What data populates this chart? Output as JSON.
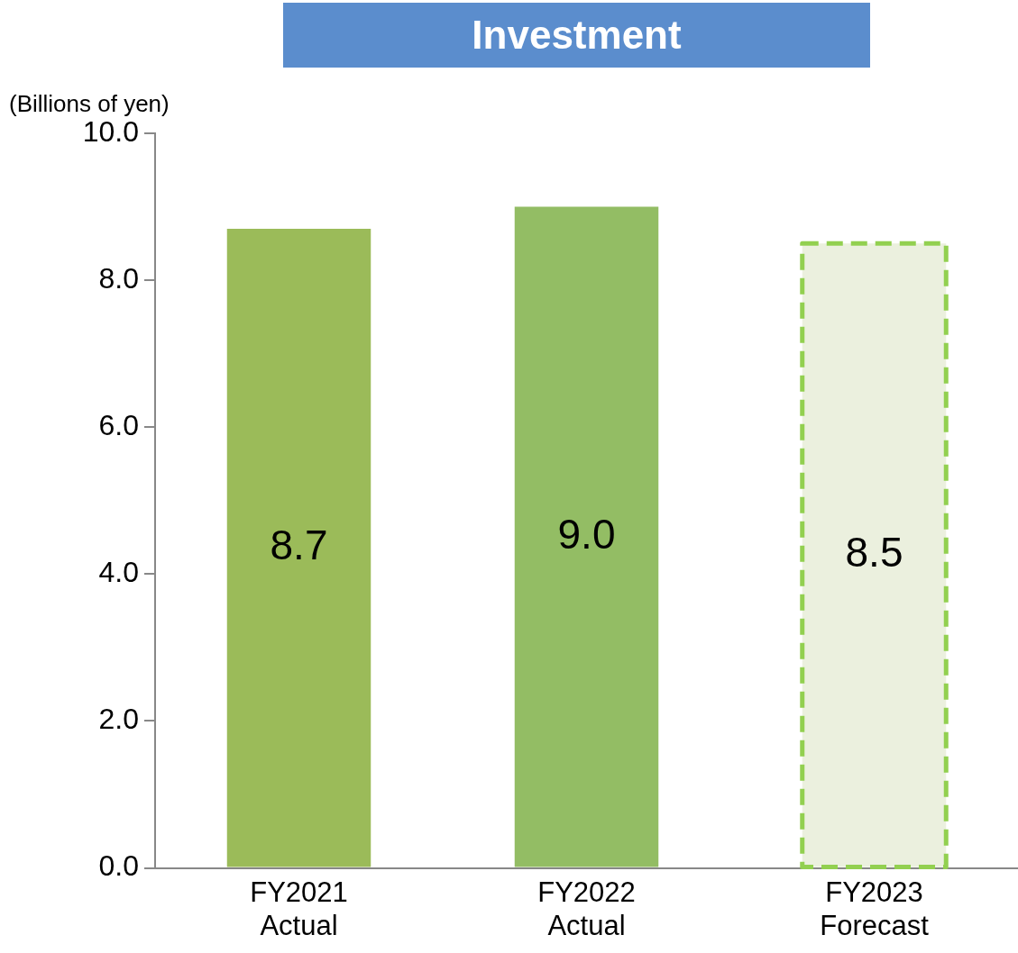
{
  "chart_data": {
    "type": "bar",
    "title": "Investment",
    "ylabel": "(Billions of yen)",
    "categories": [
      "FY2021\nActual",
      "FY2022\nActual",
      "FY2023\nForecast"
    ],
    "series": [
      {
        "colors": [
          "#9bbb59",
          "#93bd64",
          null
        ],
        "values": [
          8.7,
          9.0,
          null
        ],
        "value_labels": [
          "8.7",
          "9.0",
          null
        ]
      },
      {
        "color": "#ebf0de",
        "line_style": "dashed",
        "values": [
          null,
          null,
          8.5
        ],
        "value_labels": [
          null,
          null,
          "8.5"
        ]
      }
    ],
    "ylim": [
      0,
      10
    ],
    "yticks": [
      {
        "value": 0,
        "label": "0.0"
      },
      {
        "value": 2,
        "label": "2.0"
      },
      {
        "value": 4,
        "label": "4.0"
      },
      {
        "value": 6,
        "label": "6.0"
      },
      {
        "value": 8,
        "label": "8.0"
      },
      {
        "value": 10,
        "label": "10.0"
      }
    ],
    "grid": false,
    "legend": false
  }
}
